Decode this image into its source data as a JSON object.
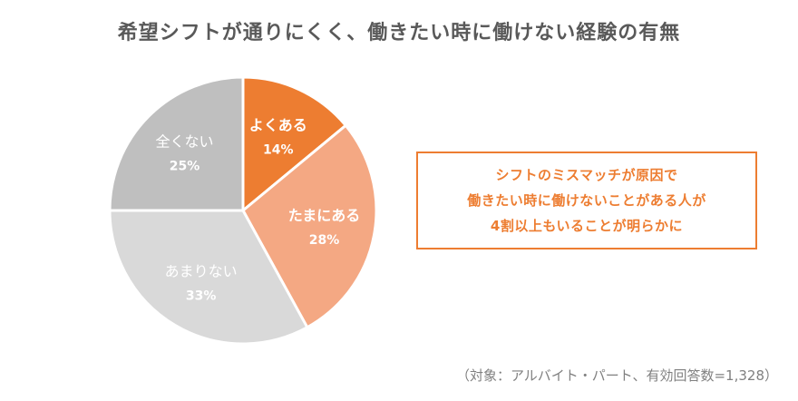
{
  "chart_data": {
    "type": "pie",
    "title": "希望シフトが通りにくく、働きたい時に働けない経験の有無",
    "slices": [
      {
        "label": "よくある",
        "value": 14,
        "value_label": "14%",
        "color": "#ed7d31",
        "text_color": "#ffffff"
      },
      {
        "label": "たまにある",
        "value": 28,
        "value_label": "28%",
        "color": "#f4a883",
        "text_color": "#ffffff"
      },
      {
        "label": "あまりない",
        "value": 33,
        "value_label": "33%",
        "color": "#d9d9d9",
        "text_color": "#ffffff"
      },
      {
        "label": "全くない",
        "value": 25,
        "value_label": "25%",
        "color": "#bfbfbf",
        "text_color": "#ffffff"
      }
    ],
    "start": "12 o'clock",
    "direction": "clockwise",
    "legend": "none"
  },
  "callout": {
    "lines": [
      "シフトのミスマッチが原因で",
      "働きたい時に働けないことがある人が",
      "4割以上もいることが明らかに"
    ],
    "color": "#ed7d31"
  },
  "footnote": "（対象：アルバイト・パート、有効回答数=1,328）"
}
